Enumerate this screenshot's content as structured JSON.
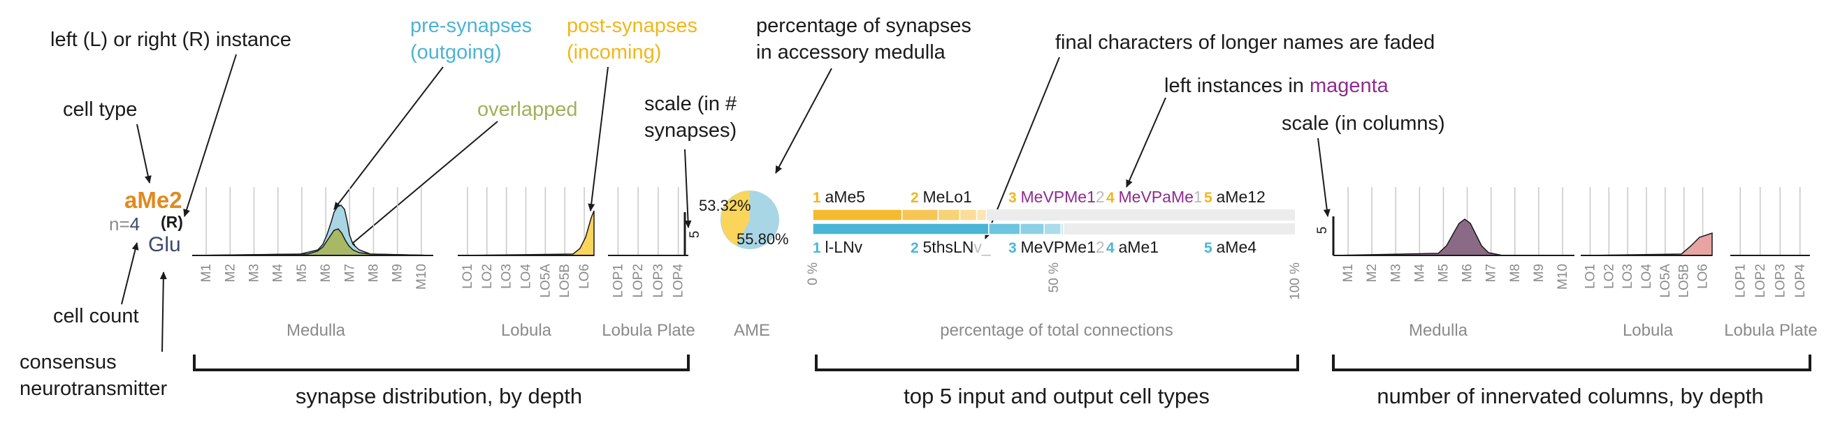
{
  "annotations": {
    "instance": "left (L) or right (R) instance",
    "cell_type": "cell type",
    "cell_count": "cell count",
    "neurotransmitter_line1": "consensus",
    "neurotransmitter_line2": "neurotransmitter",
    "pre_line1": "pre-synapses",
    "pre_line2": "(outgoing)",
    "post_line1": "post-synapses",
    "post_line2": "(incoming)",
    "overlapped": "overlapped",
    "scale_syn_line1": "scale (in #",
    "scale_syn_line2": "synapses)",
    "pct_ame_line1": "percentage of synapses",
    "pct_ame_line2": "in accessory medulla",
    "faded": "final characters of longer names are faded",
    "left_prefix": "left instances in ",
    "left_magenta": "magenta",
    "scale_col": "scale (in columns)"
  },
  "cell": {
    "type": "aMe2",
    "count_prefix": "n=",
    "count": "4",
    "instance": "(R)",
    "neurotransmitter": "Glu"
  },
  "regions": {
    "medulla": "Medulla",
    "lobula": "Lobula",
    "lobula_plate": "Lobula Plate",
    "ame": "AME",
    "pct_total": "percentage of total connections"
  },
  "layers": {
    "medulla": [
      "M1",
      "M2",
      "M3",
      "M4",
      "M5",
      "M6",
      "M7",
      "M8",
      "M9",
      "M10"
    ],
    "lobula": [
      "LO1",
      "LO2",
      "LO3",
      "LO4",
      "LO5A",
      "LO5B",
      "LO6"
    ],
    "lobula_plate": [
      "LOP1",
      "LOP2",
      "LOP3",
      "LOP4"
    ]
  },
  "scales": {
    "synapses": "5",
    "columns": "5"
  },
  "ame_pie": {
    "post_percent": "53.32%",
    "pre_percent": "55.80%"
  },
  "axis_ticks": [
    "0 %",
    "50 %",
    "100 %"
  ],
  "inputs": [
    {
      "rank": "1",
      "head": "aMe5",
      "tail": ""
    },
    {
      "rank": "2",
      "head": "MeLo1",
      "tail": ""
    },
    {
      "rank": "3",
      "head": "MeVPMe1",
      "tail": "2"
    },
    {
      "rank": "4",
      "head": "MeVPaMe",
      "tail": "1"
    },
    {
      "rank": "5",
      "head": "aMe12",
      "tail": ""
    }
  ],
  "outputs": [
    {
      "rank": "1",
      "head": "l-LNv",
      "tail": ""
    },
    {
      "rank": "2",
      "head": "5thsLN",
      "tail": "v_"
    },
    {
      "rank": "3",
      "head": "MeVPMe1",
      "tail": "2"
    },
    {
      "rank": "4",
      "head": "aMe1",
      "tail": ""
    },
    {
      "rank": "5",
      "head": "aMe4",
      "tail": ""
    }
  ],
  "sections": {
    "synapse": "synapse distribution, by depth",
    "top5": "top 5 input and output cell types",
    "columns": "number of innervated columns, by depth"
  },
  "chart_data": [
    {
      "type": "area",
      "panel": "synapse distribution, by depth",
      "series": [
        {
          "name": "pre-synapses (outgoing)",
          "color": "#a9d6e5"
        },
        {
          "name": "post-synapses (incoming)",
          "color": "#f9d55b"
        },
        {
          "name": "overlapped",
          "color": "#a8b865"
        }
      ]
    },
    {
      "type": "bar",
      "panel": "top 5 input and output cell types",
      "xlabel": "percentage of total connections",
      "xlim": [
        0,
        100
      ],
      "series": [
        {
          "name": "input",
          "color": "#f4bb30",
          "categories": [
            "aMe5",
            "MeLo1",
            "MeVPMe12",
            "MeVPaMe1",
            "aMe12"
          ],
          "values": [
            18.5,
            7.5,
            4.5,
            3.5,
            2.0
          ]
        },
        {
          "name": "output",
          "color": "#49b6d6",
          "categories": [
            "l-LNv",
            "5thsLNv_",
            "MeVPMe12",
            "aMe1",
            "aMe4"
          ],
          "values": [
            36.5,
            6.5,
            5.0,
            3.5,
            0.5
          ]
        }
      ]
    },
    {
      "type": "area",
      "panel": "number of innervated columns, by depth",
      "series": [
        {
          "name": "right instance",
          "color": "#8a6a85"
        },
        {
          "name": "left instance",
          "color": "#e8a3a3"
        }
      ]
    }
  ],
  "colors": {
    "cell_type": "#e08a1e",
    "count": "#3b4a6b",
    "pre": "#4db3d3",
    "post": "#f2b619",
    "overlap": "#9db25a",
    "magenta": "#8e2b8e",
    "input_rank": "#f2b619",
    "output_rank": "#49b6d6",
    "left_rank": "#c8a0d0"
  }
}
